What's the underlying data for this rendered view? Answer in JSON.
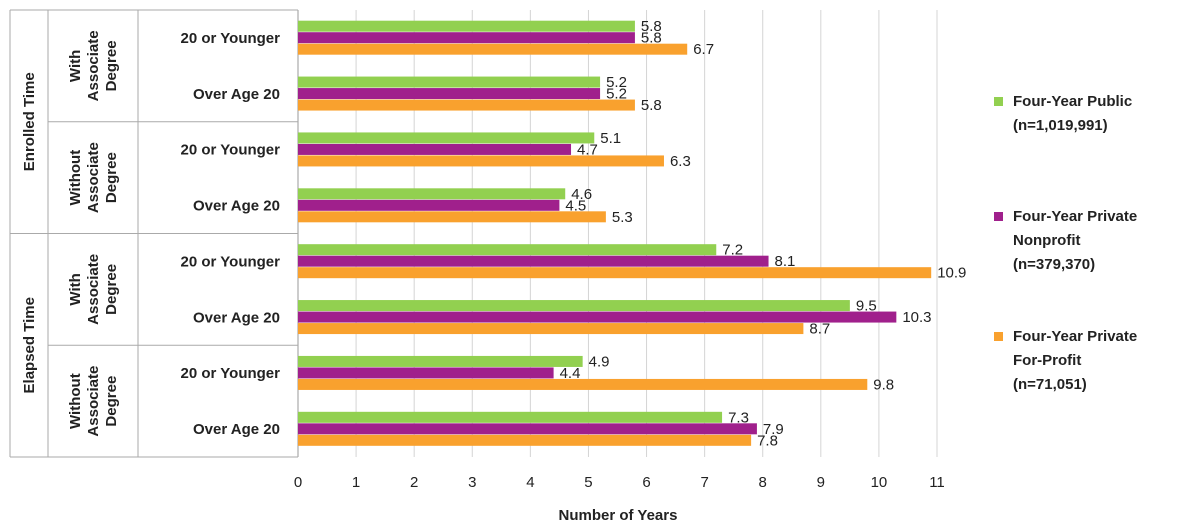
{
  "chart_data": {
    "type": "bar",
    "orientation": "horizontal",
    "xlabel": "Number of Years",
    "xlim": [
      0,
      11
    ],
    "xticks": [
      "0",
      "1",
      "2",
      "3",
      "4",
      "5",
      "6",
      "7",
      "8",
      "9",
      "10",
      "11"
    ],
    "grid": true,
    "legend_position": "right",
    "groups": [
      {
        "name": "Enrolled Time",
        "subgroups": [
          {
            "name": "With Associate Degree",
            "categories": [
              "20 or Younger",
              "Over Age 20"
            ]
          },
          {
            "name": "Without Associate Degree",
            "categories": [
              "20 or Younger",
              "Over Age 20"
            ]
          }
        ]
      },
      {
        "name": "Elapsed Time",
        "subgroups": [
          {
            "name": "With Associate Degree",
            "categories": [
              "20 or Younger",
              "Over Age 20"
            ]
          },
          {
            "name": "Without Associate Degree",
            "categories": [
              "20 or Younger",
              "Over Age 20"
            ]
          }
        ]
      }
    ],
    "series": [
      {
        "name": "Four-Year Public (n=1,019,991)",
        "color": "#92d050",
        "values": [
          5.8,
          5.2,
          5.1,
          4.6,
          7.2,
          9.5,
          4.9,
          7.3
        ]
      },
      {
        "name": "Four-Year Private Nonprofit (n=379,370)",
        "color": "#a0208c",
        "values": [
          5.8,
          5.2,
          4.7,
          4.5,
          8.1,
          10.3,
          4.4,
          7.9
        ]
      },
      {
        "name": "Four-Year Private For-Profit (n=71,051)",
        "color": "#f9a12e",
        "values": [
          6.7,
          5.8,
          6.3,
          5.3,
          10.9,
          8.7,
          9.8,
          7.8
        ]
      }
    ],
    "legend": [
      {
        "lines": [
          "Four-Year Public",
          "(n=1,019,991)"
        ],
        "color": "#92d050"
      },
      {
        "lines": [
          "Four-Year Private",
          "Nonprofit",
          "(n=379,370)"
        ],
        "color": "#a0208c"
      },
      {
        "lines": [
          "Four-Year Private",
          "For-Profit",
          "(n=71,051)"
        ],
        "color": "#f9a12e"
      }
    ],
    "group_label_lines": {
      "With Associate Degree": [
        "With",
        "Associate",
        "Degree"
      ],
      "Without Associate Degree": [
        "Without",
        "Associate",
        "Degree"
      ]
    }
  }
}
